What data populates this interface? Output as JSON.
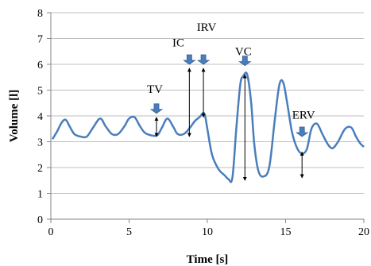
{
  "chart_data": {
    "type": "line",
    "xlabel": "Time [s]",
    "ylabel": "Volume [l]",
    "xlim": [
      0,
      20
    ],
    "ylim": [
      0,
      8
    ],
    "x_ticks": [
      0,
      5,
      10,
      15,
      20
    ],
    "y_ticks": [
      0,
      1,
      2,
      3,
      4,
      5,
      6,
      7,
      8
    ],
    "x_tick_labels": [
      "0",
      "5",
      "10",
      "15",
      "20"
    ],
    "y_tick_labels": [
      "0",
      "1",
      "2",
      "3",
      "4",
      "5",
      "6",
      "7",
      "8"
    ],
    "grid": "horizontal",
    "line_color": "#4a7ebb",
    "series": [
      {
        "x": [
          0.1,
          0.4,
          0.7,
          0.95,
          1.2,
          1.5,
          1.9,
          2.3,
          2.7,
          3.15,
          3.5,
          3.9,
          4.3,
          4.7,
          5.0,
          5.35,
          5.65,
          6.0,
          6.4,
          6.8,
          7.1,
          7.45,
          7.85,
          8.1,
          8.5,
          8.9,
          9.2,
          9.5,
          9.8,
          10.0,
          10.3,
          10.7,
          11.1,
          11.35,
          11.6,
          11.85,
          12.1,
          12.3,
          12.55,
          12.8,
          13.0,
          13.25,
          13.55,
          13.95,
          14.3,
          14.6,
          14.85,
          15.1,
          15.4,
          15.7,
          16.0,
          16.35,
          16.65,
          17.0,
          17.35,
          17.7,
          18.0,
          18.35,
          18.8,
          19.2,
          19.5,
          19.75,
          20.0
        ],
        "y": [
          3.1,
          3.4,
          3.75,
          3.85,
          3.6,
          3.3,
          3.2,
          3.2,
          3.55,
          3.9,
          3.6,
          3.3,
          3.3,
          3.6,
          3.9,
          3.95,
          3.65,
          3.35,
          3.25,
          3.25,
          3.55,
          3.9,
          3.55,
          3.3,
          3.3,
          3.55,
          3.8,
          3.95,
          4.1,
          3.5,
          2.5,
          1.95,
          1.7,
          1.55,
          1.6,
          3.5,
          5.2,
          5.55,
          5.6,
          4.5,
          2.9,
          1.9,
          1.65,
          2.0,
          3.8,
          5.2,
          5.3,
          4.5,
          3.4,
          2.8,
          2.55,
          2.7,
          3.5,
          3.7,
          3.3,
          2.9,
          2.75,
          3.0,
          3.5,
          3.55,
          3.2,
          2.95,
          2.8
        ]
      }
    ],
    "annotations": [
      {
        "label": "TV",
        "label_at": [
          6.65,
          4.9
        ],
        "marker_at": [
          6.75,
          4.1
        ],
        "arrow_x": 6.75,
        "arrow_from": 3.2,
        "arrow_to": 3.95
      },
      {
        "label": "IC",
        "label_at": [
          8.15,
          6.7
        ],
        "marker_at": [
          8.85,
          6.0
        ],
        "arrow_x": 8.85,
        "arrow_from": 3.2,
        "arrow_to": 5.85
      },
      {
        "label": "IRV",
        "label_at": [
          9.95,
          7.3
        ],
        "marker_at": [
          9.75,
          6.0
        ],
        "arrow_x": 9.75,
        "arrow_from": 3.95,
        "arrow_to": 5.85
      },
      {
        "label": "VC",
        "label_at": [
          12.3,
          6.35
        ],
        "marker_at": [
          12.4,
          5.95
        ],
        "arrow_x": 12.4,
        "arrow_from": 1.5,
        "arrow_to": 5.6
      },
      {
        "label": "ERV",
        "label_at": [
          16.15,
          3.9
        ],
        "marker_at": [
          16.05,
          3.2
        ],
        "arrow_x": 16.05,
        "arrow_from": 1.6,
        "arrow_to": 2.6
      }
    ]
  }
}
